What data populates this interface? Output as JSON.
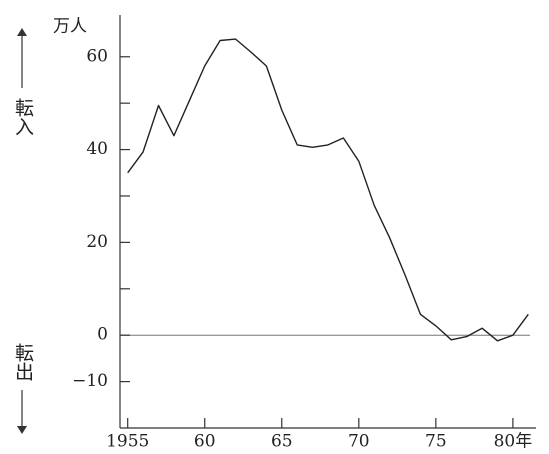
{
  "chart_data": {
    "type": "line",
    "y_unit_label": "万人",
    "inflow_label": "転入",
    "outflow_label": "転出",
    "x": [
      1955,
      1956,
      1957,
      1958,
      1959,
      1960,
      1961,
      1962,
      1963,
      1964,
      1965,
      1966,
      1967,
      1968,
      1969,
      1970,
      1971,
      1972,
      1973,
      1974,
      1975,
      1976,
      1977,
      1978,
      1979,
      1980,
      1981
    ],
    "values": [
      35,
      39.5,
      49.5,
      43,
      50.5,
      58,
      63.5,
      63.8,
      61,
      58,
      48.5,
      41,
      40.5,
      41,
      42.5,
      37.5,
      28,
      21,
      13,
      4.5,
      2,
      -1,
      -0.3,
      1.5,
      -1.2,
      0,
      4.5
    ],
    "color": "#222222",
    "xlim": [
      1954.5,
      1981.5
    ],
    "xticks": [
      1955,
      {
        "value": 1960,
        "label": "60"
      },
      {
        "value": 1965,
        "label": "65"
      },
      {
        "value": 1970,
        "label": "70"
      },
      {
        "value": 1975,
        "label": "75"
      },
      {
        "value": 1980,
        "label": "80年"
      }
    ],
    "ylim": [
      -20,
      69
    ],
    "yticks": [
      {
        "value": -10,
        "label": "−10"
      },
      0,
      20,
      40,
      60
    ],
    "yminor_ticks": [
      10,
      30,
      50
    ],
    "zero_line": true
  }
}
